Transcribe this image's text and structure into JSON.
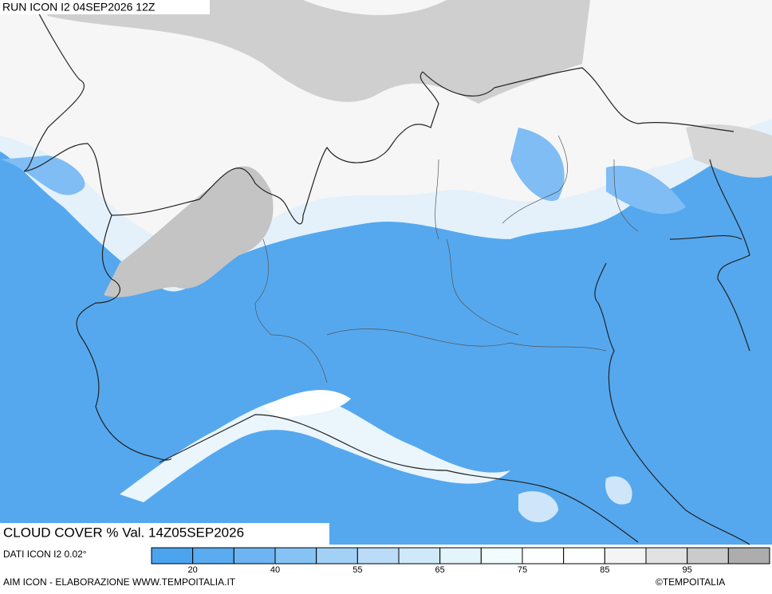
{
  "header": {
    "title": "RUN ICON I2 04SEP2026 12Z"
  },
  "map": {
    "label": "CLOUD COVER % Val. 14Z05SEP2026"
  },
  "footer": {
    "source": "DATI ICON I2 0.02°",
    "credit": "AIM ICON - ELABORAZIONE WWW.TEMPOITALIA.IT",
    "copyright": "©TEMPOITALIA"
  },
  "legend": {
    "colors": [
      "#4ca4ee",
      "#5aabf0",
      "#6cb5f2",
      "#86c3f5",
      "#a2d0f7",
      "#bbdcf8",
      "#d0e9fa",
      "#e3f4fb",
      "#f0fcfd",
      "#ffffff",
      "#ffffff",
      "#f4f4f4",
      "#e2e2e2",
      "#cbcbcb",
      "#adadad"
    ],
    "ticks": [
      20,
      40,
      55,
      65,
      75,
      85,
      95
    ]
  }
}
